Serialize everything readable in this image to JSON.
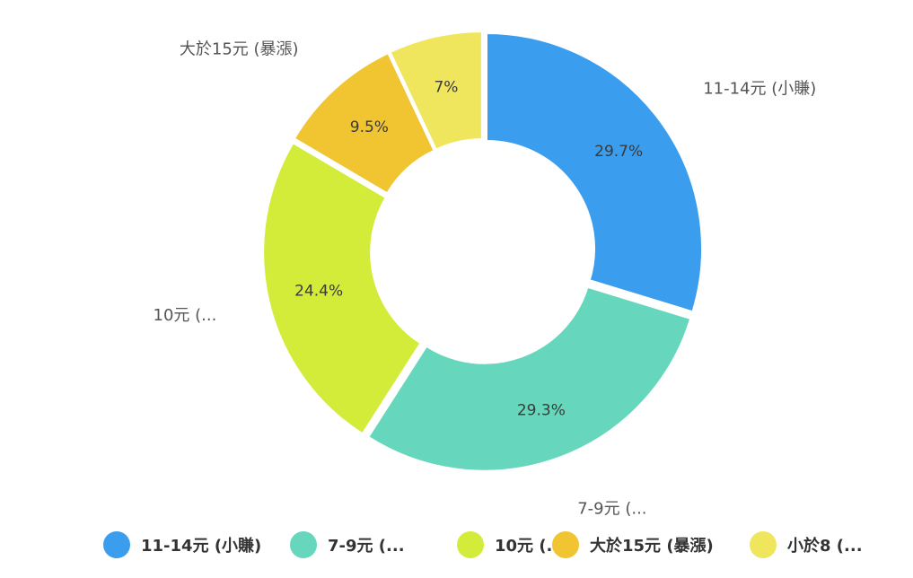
{
  "chart_data": {
    "type": "pie",
    "donut": true,
    "series": [
      {
        "name": "11-14元 (小賺)",
        "short_label": "11-14元 (小賺)",
        "value": 29.7,
        "value_label": "29.7%",
        "color": "#3b9ded"
      },
      {
        "name": "7-9元 (...",
        "short_label": "7-9元 (...",
        "value": 29.3,
        "value_label": "29.3%",
        "color": "#66d7bc"
      },
      {
        "name": "10元 (...",
        "short_label": "10元 (...",
        "value": 24.4,
        "value_label": "24.4%",
        "color": "#d3ec3a"
      },
      {
        "name": "大於15元 (暴漲)",
        "short_label": "大於15元 (暴漲)",
        "value": 9.5,
        "value_label": "9.5%",
        "color": "#f0c531"
      },
      {
        "name": "小於8 (...",
        "short_label": "小於8 (...",
        "value": 7.0,
        "value_label": "7%",
        "color": "#f0e65e"
      }
    ],
    "legend_position": "bottom",
    "start_angle": "top, clockwise"
  }
}
